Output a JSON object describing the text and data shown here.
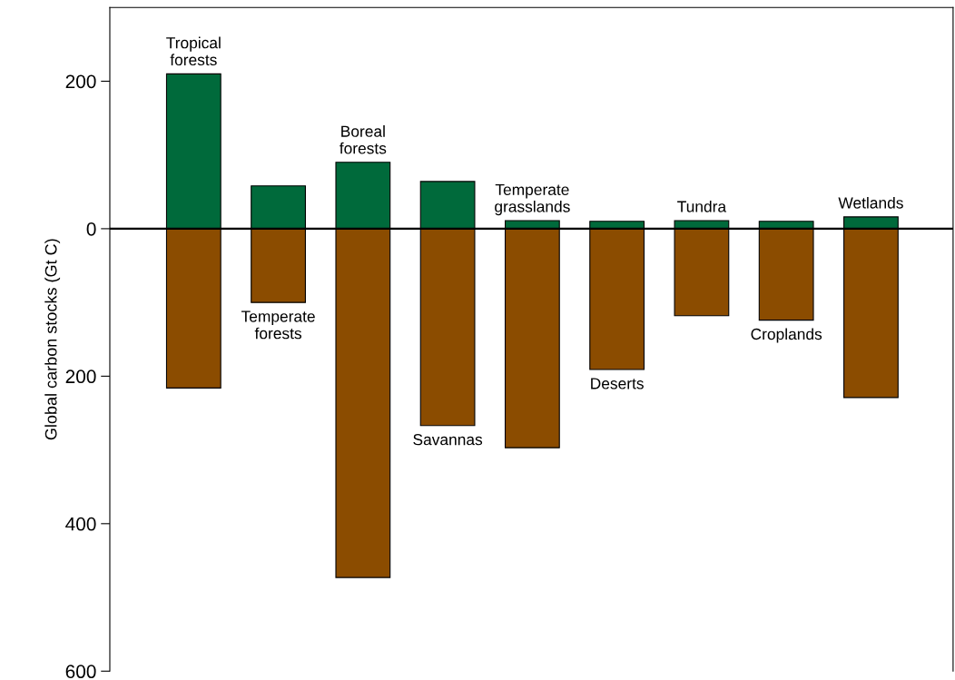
{
  "chart_data": {
    "type": "bar",
    "ylabel": "Global carbon stocks (Gt C)",
    "categories": [
      "Tropical\nforests",
      "Temperate\nforests",
      "Boreal\nforests",
      "Savannas",
      "Temperate\ngrasslands",
      "Deserts",
      "Tundra",
      "Croplands",
      "Wetlands"
    ],
    "series": [
      {
        "color": "#006a3b",
        "values": [
          210,
          58,
          90,
          64,
          11,
          10,
          11,
          10,
          16
        ]
      },
      {
        "color": "#8b4c00",
        "values": [
          -216,
          -100,
          -473,
          -267,
          -297,
          -191,
          -118,
          -124,
          -229
        ]
      }
    ],
    "ylim": [
      -600,
      300
    ],
    "yticks": [
      {
        "value": -600,
        "label": "600"
      },
      {
        "value": -400,
        "label": "400"
      },
      {
        "value": -200,
        "label": "200"
      },
      0,
      200
    ],
    "ref_lines": [
      {
        "axis": "y",
        "value": 0,
        "color": "#000000"
      }
    ],
    "stacked": true,
    "grid": false,
    "legend": false
  }
}
